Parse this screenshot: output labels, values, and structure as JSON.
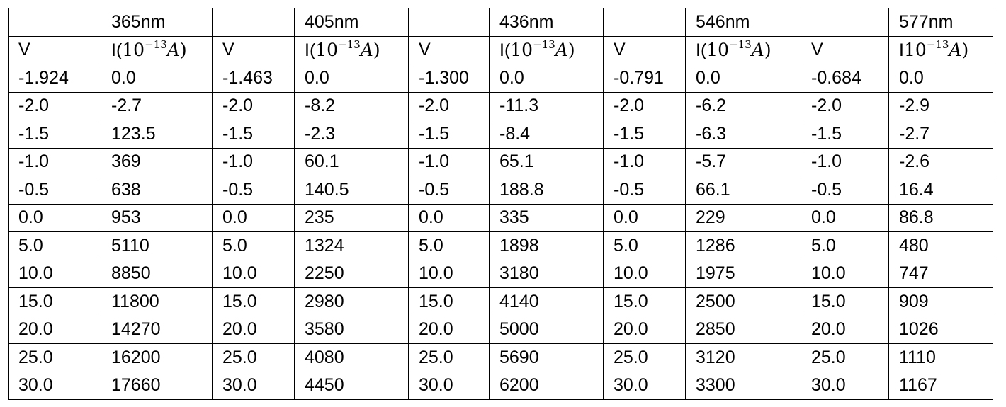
{
  "wavelengths": [
    "365nm",
    "405nm",
    "436nm",
    "546nm",
    "577nm"
  ],
  "voltage_header": "V",
  "current_headers": [
    {
      "prefix": "I(",
      "base": "10",
      "exponent": "−13",
      "unit": "A",
      "suffix": ")"
    },
    {
      "prefix": "I(",
      "base": "10",
      "exponent": "−13",
      "unit": "A",
      "suffix": ")"
    },
    {
      "prefix": "I(",
      "base": "10",
      "exponent": "−13",
      "unit": "A",
      "suffix": ")"
    },
    {
      "prefix": "I(",
      "base": "10",
      "exponent": "−13",
      "unit": "A",
      "suffix": ")"
    },
    {
      "prefix": "I",
      "base": "10",
      "exponent": "−13",
      "unit": "A",
      "suffix": ")"
    }
  ],
  "rows": [
    [
      "-1.924",
      "0.0",
      "-1.463",
      "0.0",
      "-1.300",
      "0.0",
      "-0.791",
      "0.0",
      "-0.684",
      "0.0"
    ],
    [
      "-2.0",
      "-2.7",
      "-2.0",
      "-8.2",
      "-2.0",
      "-11.3",
      "-2.0",
      "-6.2",
      "-2.0",
      "-2.9"
    ],
    [
      "-1.5",
      "123.5",
      "-1.5",
      "-2.3",
      "-1.5",
      "-8.4",
      "-1.5",
      "-6.3",
      "-1.5",
      "-2.7"
    ],
    [
      "-1.0",
      "369",
      "-1.0",
      "60.1",
      "-1.0",
      "65.1",
      "-1.0",
      "-5.7",
      "-1.0",
      "-2.6"
    ],
    [
      "-0.5",
      "638",
      "-0.5",
      "140.5",
      "-0.5",
      "188.8",
      "-0.5",
      "66.1",
      "-0.5",
      "16.4"
    ],
    [
      "0.0",
      "953",
      "0.0",
      "235",
      "0.0",
      "335",
      "0.0",
      "229",
      "0.0",
      "86.8"
    ],
    [
      "5.0",
      "5110",
      "5.0",
      "1324",
      "5.0",
      "1898",
      "5.0",
      "1286",
      "5.0",
      "480"
    ],
    [
      "10.0",
      "8850",
      "10.0",
      "2250",
      "10.0",
      "3180",
      "10.0",
      "1975",
      "10.0",
      "747"
    ],
    [
      "15.0",
      "11800",
      "15.0",
      "2980",
      "15.0",
      "4140",
      "15.0",
      "2500",
      "15.0",
      "909"
    ],
    [
      "20.0",
      "14270",
      "20.0",
      "3580",
      "20.0",
      "5000",
      "20.0",
      "2850",
      "20.0",
      "1026"
    ],
    [
      "25.0",
      "16200",
      "25.0",
      "4080",
      "25.0",
      "5690",
      "25.0",
      "3120",
      "25.0",
      "1110"
    ],
    [
      "30.0",
      "17660",
      "30.0",
      "4450",
      "30.0",
      "6200",
      "30.0",
      "3300",
      "30.0",
      "1167"
    ]
  ]
}
